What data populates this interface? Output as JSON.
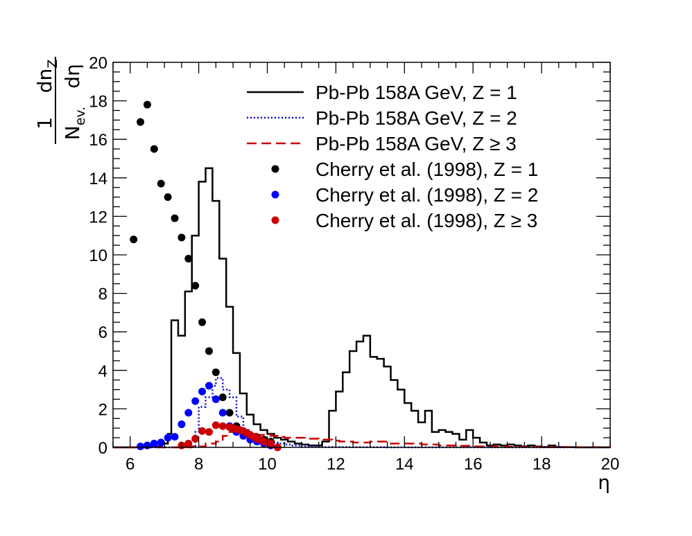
{
  "chart_data": {
    "type": "line",
    "xlabel": "η",
    "ylabel": {
      "numerator": "1",
      "denominator": "N",
      "denominator_sub": "ev.",
      "diff_numerator": "dn",
      "diff_numerator_sub": "Z",
      "diff_denominator": "dη"
    },
    "xlim": [
      5.5,
      20
    ],
    "ylim": [
      0,
      20
    ],
    "x_ticks": [
      "6",
      "8",
      "10",
      "12",
      "14",
      "16",
      "18",
      "20"
    ],
    "y_ticks": [
      "0",
      "2",
      "4",
      "6",
      "8",
      "10",
      "12",
      "14",
      "16",
      "18",
      "20"
    ],
    "grid": false,
    "legend_position": "top-right",
    "series": [
      {
        "name": "Pb-Pb 158A GeV, Z = 1",
        "kind": "histogram",
        "color": "#000000",
        "dash": "none",
        "bins": [
          [
            5.5,
            0
          ],
          [
            6.0,
            0
          ],
          [
            6.5,
            0.05
          ],
          [
            6.9,
            0.2
          ],
          [
            7.1,
            0.7
          ],
          [
            7.2,
            6.6
          ],
          [
            7.4,
            5.8
          ],
          [
            7.6,
            8.1
          ],
          [
            7.8,
            11
          ],
          [
            8.0,
            13.8
          ],
          [
            8.2,
            14.5
          ],
          [
            8.4,
            12.8
          ],
          [
            8.6,
            9.8
          ],
          [
            8.8,
            7.3
          ],
          [
            9.0,
            4.9
          ],
          [
            9.2,
            2.8
          ],
          [
            9.4,
            1.7
          ],
          [
            9.6,
            1.2
          ],
          [
            9.8,
            0.9
          ],
          [
            10.0,
            0.7
          ],
          [
            10.2,
            0.5
          ],
          [
            10.4,
            0.4
          ],
          [
            10.6,
            0.3
          ],
          [
            10.8,
            0.2
          ],
          [
            11.0,
            0.15
          ],
          [
            11.2,
            0.1
          ],
          [
            11.4,
            0.1
          ],
          [
            11.6,
            0.3
          ],
          [
            11.8,
            1.9
          ],
          [
            12.0,
            2.9
          ],
          [
            12.2,
            3.9
          ],
          [
            12.4,
            5.0
          ],
          [
            12.6,
            5.5
          ],
          [
            12.8,
            5.8
          ],
          [
            13.0,
            4.7
          ],
          [
            13.2,
            4.6
          ],
          [
            13.4,
            4.2
          ],
          [
            13.6,
            3.5
          ],
          [
            13.8,
            3.0
          ],
          [
            14.0,
            2.3
          ],
          [
            14.2,
            1.9
          ],
          [
            14.4,
            1.3
          ],
          [
            14.6,
            1.9
          ],
          [
            14.8,
            0.8
          ],
          [
            15.0,
            0.9
          ],
          [
            15.2,
            0.8
          ],
          [
            15.4,
            0.7
          ],
          [
            15.6,
            0.4
          ],
          [
            15.8,
            0.9
          ],
          [
            16.0,
            0.5
          ],
          [
            16.2,
            0.25
          ],
          [
            16.4,
            0.1
          ],
          [
            16.6,
            0.15
          ],
          [
            16.8,
            0.1
          ],
          [
            17.0,
            0.15
          ],
          [
            17.2,
            0.1
          ],
          [
            17.4,
            0.05
          ],
          [
            17.6,
            0.1
          ],
          [
            17.8,
            0.05
          ],
          [
            18.0,
            0.02
          ],
          [
            18.2,
            0.1
          ],
          [
            18.4,
            0.02
          ],
          [
            18.6,
            0.01
          ],
          [
            19.0,
            0
          ],
          [
            20.0,
            0
          ]
        ]
      },
      {
        "name": "Pb-Pb 158A GeV, Z = 2",
        "kind": "histogram",
        "color": "#0000cc",
        "dash": "dotted",
        "bins": [
          [
            5.5,
            0
          ],
          [
            7.5,
            0.05
          ],
          [
            7.9,
            0.8
          ],
          [
            8.0,
            2.1
          ],
          [
            8.2,
            2.6
          ],
          [
            8.4,
            3.2
          ],
          [
            8.5,
            3.6
          ],
          [
            8.7,
            3.0
          ],
          [
            8.9,
            2.6
          ],
          [
            9.1,
            1.6
          ],
          [
            9.3,
            0.9
          ],
          [
            9.5,
            0.7
          ],
          [
            9.7,
            0.5
          ],
          [
            9.9,
            0.4
          ],
          [
            10.1,
            0.25
          ],
          [
            10.3,
            0.2
          ],
          [
            10.5,
            0.15
          ],
          [
            10.7,
            0.1
          ],
          [
            11.0,
            0.05
          ],
          [
            11.5,
            0.02
          ],
          [
            12.5,
            0.01
          ],
          [
            13.5,
            0
          ],
          [
            20.0,
            0
          ]
        ]
      },
      {
        "name": "Pb-Pb 158A GeV, Z ≥ 3",
        "kind": "histogram",
        "color": "#cc0000",
        "dash": "dashed",
        "bins": [
          [
            5.5,
            0
          ],
          [
            7.8,
            0.05
          ],
          [
            8.2,
            0.2
          ],
          [
            8.5,
            0.3
          ],
          [
            8.7,
            0.6
          ],
          [
            8.9,
            0.8
          ],
          [
            9.1,
            0.75
          ],
          [
            9.3,
            0.75
          ],
          [
            9.5,
            0.7
          ],
          [
            9.7,
            0.65
          ],
          [
            9.9,
            0.65
          ],
          [
            10.1,
            0.6
          ],
          [
            10.3,
            0.55
          ],
          [
            10.5,
            0.5
          ],
          [
            10.7,
            0.5
          ],
          [
            10.9,
            0.5
          ],
          [
            11.1,
            0.45
          ],
          [
            11.3,
            0.45
          ],
          [
            11.5,
            0.4
          ],
          [
            11.7,
            0.4
          ],
          [
            11.9,
            0.35
          ],
          [
            12.1,
            0.3
          ],
          [
            12.5,
            0.25
          ],
          [
            13.0,
            0.3
          ],
          [
            13.5,
            0.2
          ],
          [
            14.0,
            0.2
          ],
          [
            14.5,
            0.15
          ],
          [
            15.0,
            0.1
          ],
          [
            15.5,
            0.08
          ],
          [
            16.0,
            0.05
          ],
          [
            17.0,
            0.03
          ],
          [
            18.0,
            0.02
          ],
          [
            19.0,
            0.01
          ],
          [
            20.0,
            0
          ]
        ]
      },
      {
        "name": "Cherry et al. (1998), Z = 1",
        "kind": "points",
        "color": "#000000",
        "x": [
          6.1,
          6.3,
          6.5,
          6.7,
          6.9,
          7.1,
          7.3,
          7.5,
          7.7,
          7.9,
          8.1,
          8.3,
          8.5,
          8.7,
          8.9,
          9.1,
          9.3,
          9.5,
          9.7,
          9.9,
          10.1
        ],
        "y": [
          10.8,
          16.9,
          17.8,
          15.5,
          13.7,
          13.0,
          11.9,
          10.9,
          9.8,
          8.4,
          6.5,
          5.0,
          3.9,
          2.6,
          1.8,
          1.1,
          0.8,
          0.6,
          0.5,
          0.4,
          0.3
        ]
      },
      {
        "name": "Cherry et al. (1998), Z = 2",
        "kind": "points",
        "color": "#0000ff",
        "x": [
          6.3,
          6.5,
          6.7,
          6.9,
          7.1,
          7.3,
          7.5,
          7.7,
          7.9,
          8.1,
          8.3,
          8.5,
          8.7,
          8.9,
          9.1,
          9.3,
          9.5,
          9.7,
          9.9,
          10.1
        ],
        "y": [
          0.05,
          0.1,
          0.2,
          0.25,
          0.5,
          0.55,
          1.2,
          1.8,
          2.4,
          2.9,
          3.2,
          2.5,
          1.8,
          1.1,
          0.8,
          0.6,
          0.4,
          0.3,
          0.2,
          0.1
        ]
      },
      {
        "name": "Cherry et al. (1998), Z ≥ 3",
        "kind": "points",
        "color": "#cc0000",
        "x": [
          7.5,
          7.7,
          7.9,
          8.1,
          8.3,
          8.5,
          8.7,
          8.9,
          9.0,
          9.1,
          9.2,
          9.3,
          9.4,
          9.5,
          9.6,
          9.7,
          9.8,
          9.9,
          10.0,
          10.1,
          10.3
        ],
        "y": [
          0.1,
          0.2,
          0.45,
          0.85,
          0.8,
          1.15,
          1.1,
          1.05,
          1.0,
          0.95,
          0.9,
          0.85,
          0.75,
          0.65,
          0.55,
          0.45,
          0.4,
          0.3,
          0.25,
          0.2,
          0.0
        ]
      }
    ]
  }
}
